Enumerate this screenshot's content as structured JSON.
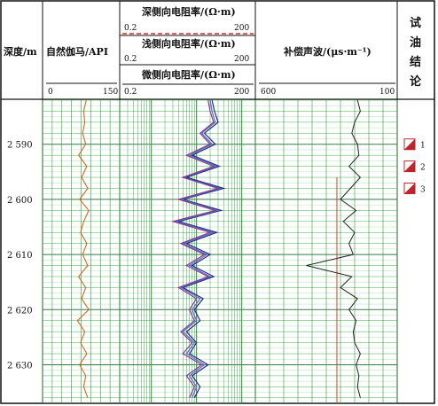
{
  "header": {
    "depth_label": "深度/m",
    "gr_label": "自然伽马/API",
    "gr_min": "0",
    "gr_max": "150",
    "deep_res_label": "深侧向电阻率/(Ω·m)",
    "deep_min": "0.2",
    "deep_max": "200",
    "shallow_res_label": "浅侧向电阻率/(Ω·m)",
    "shallow_min": "0.2",
    "shallow_max": "200",
    "micro_res_label": "微侧向电阻率/(Ω·m)",
    "micro_min": "0.2",
    "micro_max": "200",
    "sonic_label": "补偿声波/(μs·m⁻¹)",
    "sonic_min": "600",
    "sonic_max": "100",
    "conclusion_label": "试\n油\n结\n论"
  },
  "depth_ticks": [
    "2 590",
    "2 600",
    "2 610",
    "2 620",
    "2 630"
  ],
  "conclusion_items": [
    "1",
    "2",
    "3"
  ],
  "colors": {
    "grid_green": "#2e9e3c",
    "gr_curve": "#d2691e",
    "deep_res": "#1f2a8c",
    "shallow_res": "#5a6ab8",
    "micro_res": "#8a3a8a",
    "sonic_curve": "#222222",
    "sonic_ref": "#d0402a",
    "dashed_line": "#d03030"
  },
  "chart_data": {
    "type": "line",
    "depth_range": [
      2582,
      2637
    ],
    "tracks": [
      {
        "name": "自然伽马/API",
        "xlim": [
          0,
          150
        ],
        "scale": "linear",
        "series": [
          {
            "name": "GR",
            "depth": [
              2582,
              2584,
              2586,
              2588,
              2590,
              2592,
              2594,
              2596,
              2598,
              2600,
              2602,
              2604,
              2606,
              2608,
              2610,
              2612,
              2614,
              2616,
              2618,
              2620,
              2622,
              2624,
              2626,
              2628,
              2630,
              2632,
              2634,
              2636
            ],
            "values": [
              85,
              80,
              82,
              78,
              84,
              70,
              86,
              76,
              88,
              72,
              90,
              80,
              74,
              86,
              78,
              88,
              70,
              84,
              76,
              90,
              68,
              82,
              74,
              86,
              72,
              84,
              80,
              88
            ]
          }
        ]
      },
      {
        "name": "电阻率",
        "xlim": [
          0.2,
          200
        ],
        "scale": "log",
        "series": [
          {
            "name": "深侧向电阻率",
            "depth": [
              2582,
              2584,
              2586,
              2588,
              2590,
              2592,
              2594,
              2596,
              2598,
              2600,
              2602,
              2604,
              2606,
              2608,
              2610,
              2612,
              2614,
              2616,
              2618,
              2620,
              2622,
              2624,
              2626,
              2628,
              2630,
              2632,
              2634,
              2636
            ],
            "values": [
              22,
              25,
              30,
              15,
              26,
              8,
              32,
              6,
              40,
              5,
              35,
              4,
              28,
              6,
              20,
              8,
              24,
              5,
              14,
              9,
              12,
              6,
              10,
              7,
              18,
              8,
              12,
              9
            ]
          },
          {
            "name": "浅侧向电阻率",
            "depth": [
              2582,
              2584,
              2586,
              2588,
              2590,
              2592,
              2594,
              2596,
              2598,
              2600,
              2602,
              2604,
              2606,
              2608,
              2610,
              2612,
              2614,
              2616,
              2618,
              2620,
              2622,
              2624,
              2626,
              2628,
              2630,
              2632,
              2634,
              2636
            ],
            "values": [
              20,
              22,
              26,
              13,
              22,
              7,
              28,
              5,
              34,
              4.5,
              30,
              3.5,
              24,
              5,
              17,
              7,
              20,
              4.5,
              12,
              8,
              10,
              5,
              9,
              6,
              15,
              7,
              10,
              8
            ]
          },
          {
            "name": "微侧向电阻率",
            "depth": [
              2582,
              2584,
              2586,
              2588,
              2590,
              2592,
              2594,
              2596,
              2598,
              2600,
              2602,
              2604,
              2606,
              2608,
              2610,
              2612,
              2614,
              2616,
              2618,
              2620,
              2622,
              2624,
              2626,
              2628,
              2630,
              2632,
              2634,
              2636
            ],
            "values": [
              18,
              20,
              24,
              12,
              20,
              6,
              24,
              5,
              30,
              4,
              26,
              3,
              20,
              4.5,
              15,
              6,
              18,
              4,
              10,
              7,
              9,
              4.5,
              8,
              5,
              13,
              6,
              9,
              7
            ]
          }
        ]
      },
      {
        "name": "补偿声波/(μs·m⁻¹)",
        "xlim": [
          600,
          100
        ],
        "scale": "linear",
        "series": [
          {
            "name": "AC",
            "depth": [
              2582,
              2584,
              2586,
              2588,
              2590,
              2592,
              2594,
              2596,
              2598,
              2600,
              2602,
              2604,
              2606,
              2608,
              2610,
              2612,
              2614,
              2616,
              2618,
              2620,
              2622,
              2624,
              2626,
              2628,
              2630,
              2632,
              2634,
              2636
            ],
            "values": [
              240,
              230,
              250,
              260,
              240,
              235,
              270,
              230,
              265,
              300,
              245,
              290,
              250,
              270,
              255,
              420,
              260,
              300,
              240,
              270,
              245,
              255,
              250,
              230,
              245,
              235,
              240,
              230
            ]
          }
        ]
      }
    ],
    "conclusions": [
      {
        "label": "1",
        "depth": 2590
      },
      {
        "label": "2",
        "depth": 2594
      },
      {
        "label": "3",
        "depth": 2598
      }
    ]
  }
}
